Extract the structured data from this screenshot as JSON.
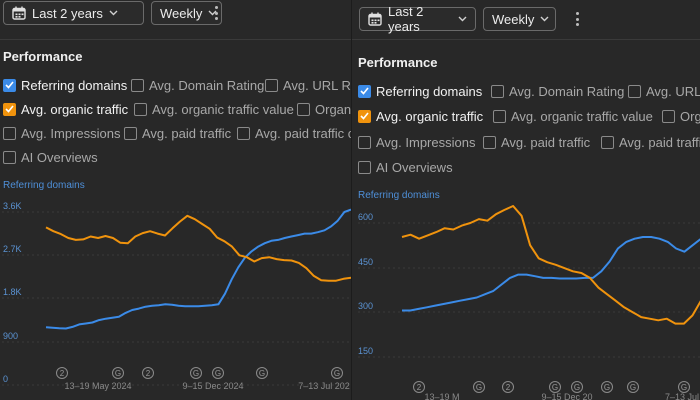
{
  "colors": {
    "background": "#282828",
    "blue_series": "#3b8be8",
    "orange_series": "#f0930d",
    "axis_label": "#5b93d3"
  },
  "panes": [
    {
      "date_range": "Last 2 years",
      "interval": "Weekly",
      "section_title": "Performance",
      "metrics": [
        [
          {
            "label": "Referring domains",
            "checked": true,
            "color": "#3b8be8"
          },
          {
            "label": "Avg. Domain Rating",
            "checked": false
          },
          {
            "label": "Avg. URL Ra",
            "checked": false
          }
        ],
        [
          {
            "label": "Avg. organic traffic",
            "checked": true,
            "color": "#f0930d"
          },
          {
            "label": "Avg. organic traffic value",
            "checked": false
          },
          {
            "label": "Organi",
            "checked": false
          }
        ],
        [
          {
            "label": "Avg. Impressions",
            "checked": false
          },
          {
            "label": "Avg. paid traffic",
            "checked": false
          },
          {
            "label": "Avg. paid traffic c",
            "checked": false
          }
        ],
        [
          {
            "label": "AI Overviews",
            "checked": false
          }
        ]
      ],
      "markers": [
        "2",
        "G",
        "2",
        "G",
        "G",
        "G",
        "G"
      ]
    },
    {
      "date_range": "Last 2 years",
      "interval": "Weekly",
      "section_title": "Performance",
      "metrics": [
        [
          {
            "label": "Referring domains",
            "checked": true,
            "color": "#3b8be8"
          },
          {
            "label": "Avg. Domain Rating",
            "checked": false
          },
          {
            "label": "Avg. URL",
            "checked": false
          }
        ],
        [
          {
            "label": "Avg. organic traffic",
            "checked": true,
            "color": "#f0930d"
          },
          {
            "label": "Avg. organic traffic value",
            "checked": false
          },
          {
            "label": "Org",
            "checked": false
          }
        ],
        [
          {
            "label": "Avg. Impressions",
            "checked": false
          },
          {
            "label": "Avg. paid traffic",
            "checked": false
          },
          {
            "label": "Avg. paid traffic",
            "checked": false
          }
        ],
        [
          {
            "label": "AI Overviews",
            "checked": false
          }
        ]
      ],
      "markers": [
        "2",
        "G",
        "2",
        "G",
        "G",
        "G",
        "G",
        "G"
      ]
    }
  ],
  "chart_data": [
    {
      "type": "line",
      "title": "Referring domains",
      "yticks": [
        "3.6K",
        "2.7K",
        "1.8K",
        "900",
        "0"
      ],
      "ylim": [
        0,
        3600
      ],
      "xticks": [
        "13–19 May 2024",
        "9–15 Dec 2024",
        "7–13 Jul 202"
      ],
      "series": [
        {
          "name": "Referring domains",
          "color": "#3b8be8",
          "values": [
            1200,
            1190,
            1180,
            1175,
            1210,
            1260,
            1280,
            1300,
            1350,
            1380,
            1400,
            1420,
            1500,
            1560,
            1590,
            1630,
            1650,
            1660,
            1680,
            1670,
            1650,
            1640,
            1640,
            1640,
            1650,
            1660,
            1680,
            1900,
            2200,
            2450,
            2650,
            2780,
            2880,
            2950,
            3000,
            3020,
            3060,
            3090,
            3120,
            3150,
            3150,
            3180,
            3220,
            3300,
            3420,
            3600,
            3650
          ]
        },
        {
          "values": [
            3280,
            3200,
            3140,
            3060,
            3020,
            3030,
            3090,
            3060,
            3100,
            3060,
            2960,
            2950,
            3090,
            3160,
            3200,
            3150,
            3110,
            3260,
            3400,
            3520,
            3450,
            3350,
            3250,
            3070,
            2990,
            2880,
            2700,
            2660,
            2570,
            2640,
            2660,
            2620,
            2600,
            2590,
            2540,
            2430,
            2270,
            2180,
            2170,
            2170,
            2210,
            2230
          ]
        }
      ]
    },
    {
      "type": "line",
      "title": "Referring domains",
      "yticks": [
        "600",
        "450",
        "300",
        "150"
      ],
      "ylim": [
        0,
        600
      ],
      "xticks": [
        "13–19 M",
        "9–15 Dec 20",
        "7–13 Jul"
      ],
      "series": [
        {
          "name": "Referring domains",
          "color": "#3b8be8",
          "values": [
            280,
            280,
            285,
            290,
            295,
            300,
            305,
            310,
            315,
            320,
            330,
            340,
            360,
            380,
            390,
            390,
            385,
            380,
            380,
            378,
            378,
            378,
            380,
            380,
            400,
            430,
            470,
            490,
            500,
            505,
            505,
            500,
            490,
            470,
            460,
            480,
            500
          ]
        },
        {
          "name": "Avg. organic traffic",
          "color": "#f0930d",
          "values": [
            505,
            512,
            500,
            510,
            520,
            532,
            528,
            540,
            548,
            560,
            555,
            575,
            588,
            600,
            570,
            480,
            440,
            428,
            420,
            410,
            400,
            395,
            380,
            350,
            330,
            310,
            290,
            275,
            260,
            255,
            250,
            255,
            240,
            240,
            265,
            310
          ]
        }
      ]
    }
  ]
}
